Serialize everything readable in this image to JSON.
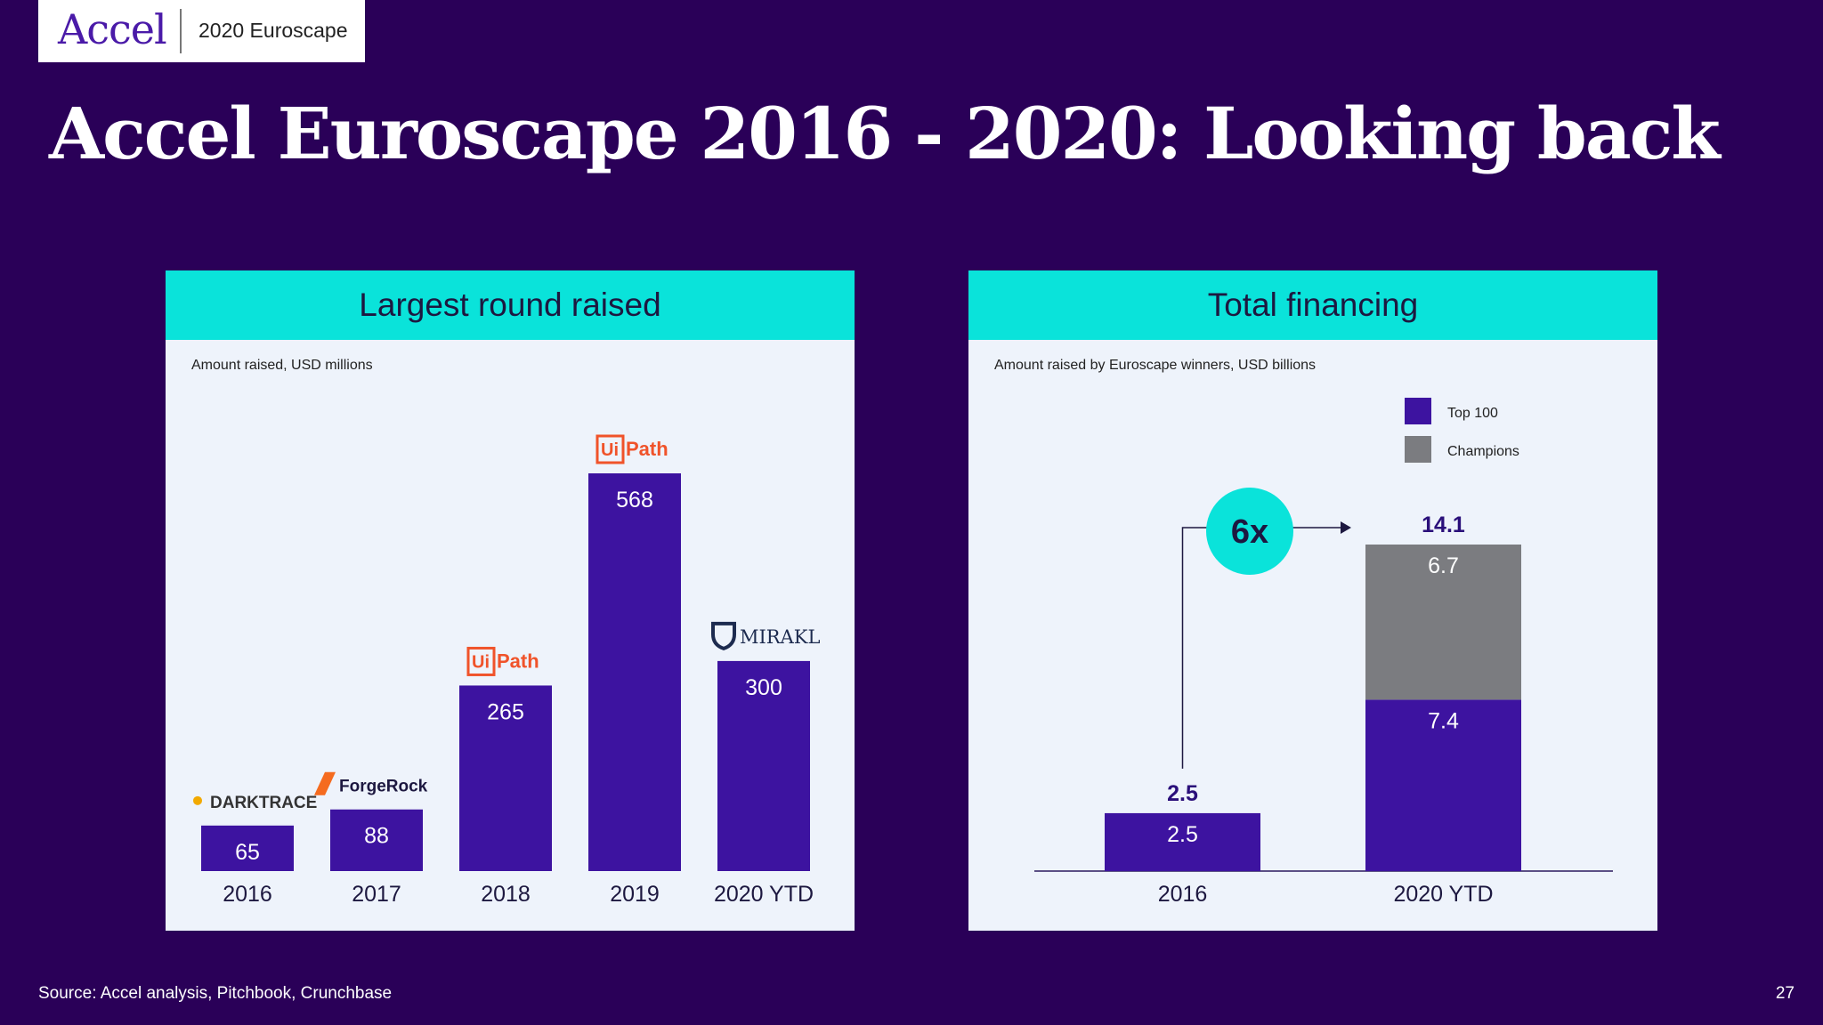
{
  "header": {
    "logo_text": "Accel",
    "badge": "2020 Euroscape"
  },
  "title": "Accel Euroscape 2016 - 2020: Looking back",
  "footer": {
    "source": "Source: Accel analysis, Pitchbook, Crunchbase",
    "page": "27"
  },
  "colors": {
    "bar": "#3d13a0",
    "champions": "#7b7c80",
    "accent": "#0ae3da",
    "background": "#2a0058"
  },
  "chart_data": [
    {
      "type": "bar",
      "title": "Largest round raised",
      "subtitle": "Amount raised, USD millions",
      "categories": [
        "2016",
        "2017",
        "2018",
        "2019",
        "2020 YTD"
      ],
      "values": [
        65,
        88,
        265,
        568,
        300
      ],
      "companies": [
        "DARKTRACE",
        "ForgeRock",
        "UiPath",
        "UiPath",
        "MIRAKL"
      ],
      "ylim": [
        0,
        568
      ]
    },
    {
      "type": "bar",
      "stacked": true,
      "title": "Total financing",
      "subtitle": "Amount raised by Euroscape winners, USD billions",
      "categories": [
        "2016",
        "2020 YTD"
      ],
      "series": [
        {
          "name": "Top 100",
          "values": [
            2.5,
            7.4
          ]
        },
        {
          "name": "Champions",
          "values": [
            0,
            6.7
          ]
        }
      ],
      "totals": [
        "2.5",
        "14.1"
      ],
      "annotation": "6x",
      "legend": "top-right",
      "ylim": [
        0,
        14.1
      ]
    }
  ]
}
